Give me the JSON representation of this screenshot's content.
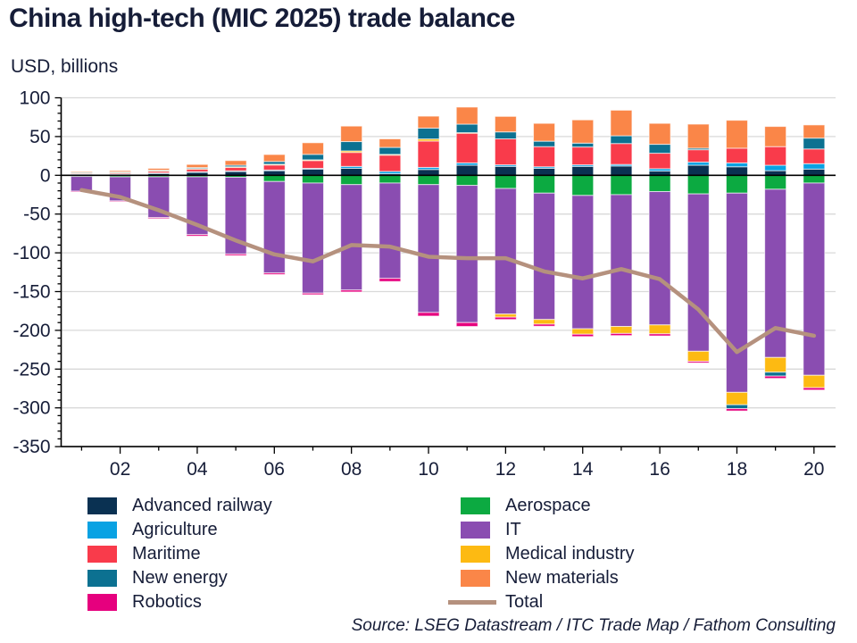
{
  "header": {
    "title": "China high-tech (MIC 2025) trade balance",
    "subtitle": "USD, billions"
  },
  "source": "Source: LSEG Datastream / ITC Trade Map / Fathom Consulting",
  "colors": {
    "text": "#161d38",
    "grid": "#d9d9d9",
    "axis": "#000000",
    "advanced_railway": "#0a3152",
    "aerospace": "#0caa41",
    "agriculture": "#09a2e3",
    "it": "#8a4db1",
    "maritime": "#f93b4b",
    "medical_industry": "#fdba12",
    "new_energy": "#0c7191",
    "new_materials": "#fa8648",
    "robotics": "#e6007e",
    "total_line": "#b5917e"
  },
  "chart_data": {
    "type": "bar",
    "stacked": true,
    "title": "China high-tech (MIC 2025) trade balance",
    "ylabel": "USD, billions",
    "ylim": [
      -350,
      100
    ],
    "ytick_step": 50,
    "ytick_labels": [
      "100",
      "50",
      "0",
      "-50",
      "-100",
      "-150",
      "-200",
      "-250",
      "-300",
      "-350"
    ],
    "grid": true,
    "legend_position": "bottom",
    "years": [
      2001,
      2002,
      2003,
      2004,
      2005,
      2006,
      2007,
      2008,
      2009,
      2010,
      2011,
      2012,
      2013,
      2014,
      2015,
      2016,
      2017,
      2018,
      2019,
      2020
    ],
    "xtick_labels": [
      "02",
      "04",
      "06",
      "08",
      "10",
      "12",
      "14",
      "16",
      "18",
      "20"
    ],
    "series": [
      {
        "name": "Advanced railway",
        "color": "#0a3152",
        "values": [
          1.2,
          1.2,
          2.5,
          4,
          5,
          6,
          8,
          9,
          2,
          7.5,
          13,
          11.5,
          9,
          11.5,
          12,
          5.5,
          13,
          11,
          6,
          8
        ]
      },
      {
        "name": "Aerospace",
        "color": "#0caa41",
        "values": [
          -1.5,
          -2,
          -2,
          -2,
          -2.5,
          -8,
          -10,
          -12,
          -10,
          -12,
          -13,
          -17,
          -23,
          -26,
          -25,
          -21,
          -24,
          -23,
          -18,
          -10
        ]
      },
      {
        "name": "Agriculture",
        "color": "#09a2e3",
        "values": [
          0.4,
          0.4,
          0.5,
          0.6,
          0.7,
          0.8,
          1,
          2.5,
          3,
          2.7,
          3,
          2,
          2,
          2,
          2,
          3,
          4,
          5,
          7,
          7
        ]
      },
      {
        "name": "IT",
        "color": "#8a4db1",
        "values": [
          -19,
          -31,
          -52.5,
          -74.5,
          -99,
          -118,
          -142,
          -136,
          -123,
          -165,
          -177,
          -162,
          -163,
          -172,
          -170,
          -172,
          -203,
          -257,
          -217,
          -248
        ]
      },
      {
        "name": "Maritime",
        "color": "#f93b4b",
        "values": [
          1.4,
          1.8,
          2.5,
          3.5,
          4.5,
          6.5,
          10,
          18,
          21,
          34,
          38.5,
          33.5,
          26,
          23,
          27,
          20,
          16,
          19,
          24,
          19
        ]
      },
      {
        "name": "Medical industry",
        "color": "#fdba12",
        "values": [
          0.3,
          0.3,
          0.4,
          0.6,
          0.8,
          1,
          1,
          2,
          1,
          2.7,
          0.5,
          -4,
          -6,
          -7,
          -9,
          -11.5,
          -13,
          -16,
          -19,
          -16
        ]
      },
      {
        "name": "New energy",
        "color": "#0c7191",
        "values": [
          0.5,
          0.6,
          0.8,
          1.3,
          2,
          3.5,
          7,
          12,
          9,
          14,
          11,
          9,
          7,
          5,
          10,
          11.5,
          2,
          -5,
          -5,
          14
        ]
      },
      {
        "name": "New materials",
        "color": "#fa8648",
        "values": [
          1.2,
          1.7,
          2.3,
          4,
          6,
          9,
          15,
          20,
          11,
          15.4,
          22,
          20,
          23,
          30,
          33,
          27,
          31,
          36,
          26,
          17
        ]
      },
      {
        "name": "Robotics",
        "color": "#e6007e",
        "values": [
          -1,
          -1,
          -1.4,
          -2,
          -2,
          -2,
          -2,
          -2.5,
          -4,
          -4.6,
          -5,
          -3,
          -2.7,
          -3,
          -2.7,
          -2.7,
          -2,
          -3,
          -3,
          -3
        ]
      }
    ],
    "line_series": {
      "name": "Total",
      "color": "#b5917e",
      "values": [
        -19,
        -28,
        -45,
        -64,
        -84,
        -102,
        -111,
        -90,
        -92,
        -105,
        -107,
        -107,
        -124,
        -133,
        -121,
        -134,
        -173,
        -228,
        -197,
        -207
      ]
    }
  },
  "legend": {
    "left": [
      {
        "label": "Advanced railway",
        "color": "#0a3152",
        "type": "box"
      },
      {
        "label": "Agriculture",
        "color": "#09a2e3",
        "type": "box"
      },
      {
        "label": "Maritime",
        "color": "#f93b4b",
        "type": "box"
      },
      {
        "label": "New energy",
        "color": "#0c7191",
        "type": "box"
      },
      {
        "label": "Robotics",
        "color": "#e6007e",
        "type": "box"
      }
    ],
    "right": [
      {
        "label": "Aerospace",
        "color": "#0caa41",
        "type": "box"
      },
      {
        "label": "IT",
        "color": "#8a4db1",
        "type": "box"
      },
      {
        "label": "Medical industry",
        "color": "#fdba12",
        "type": "box"
      },
      {
        "label": "New materials",
        "color": "#fa8648",
        "type": "box"
      },
      {
        "label": "Total",
        "color": "#b5917e",
        "type": "line"
      }
    ]
  }
}
